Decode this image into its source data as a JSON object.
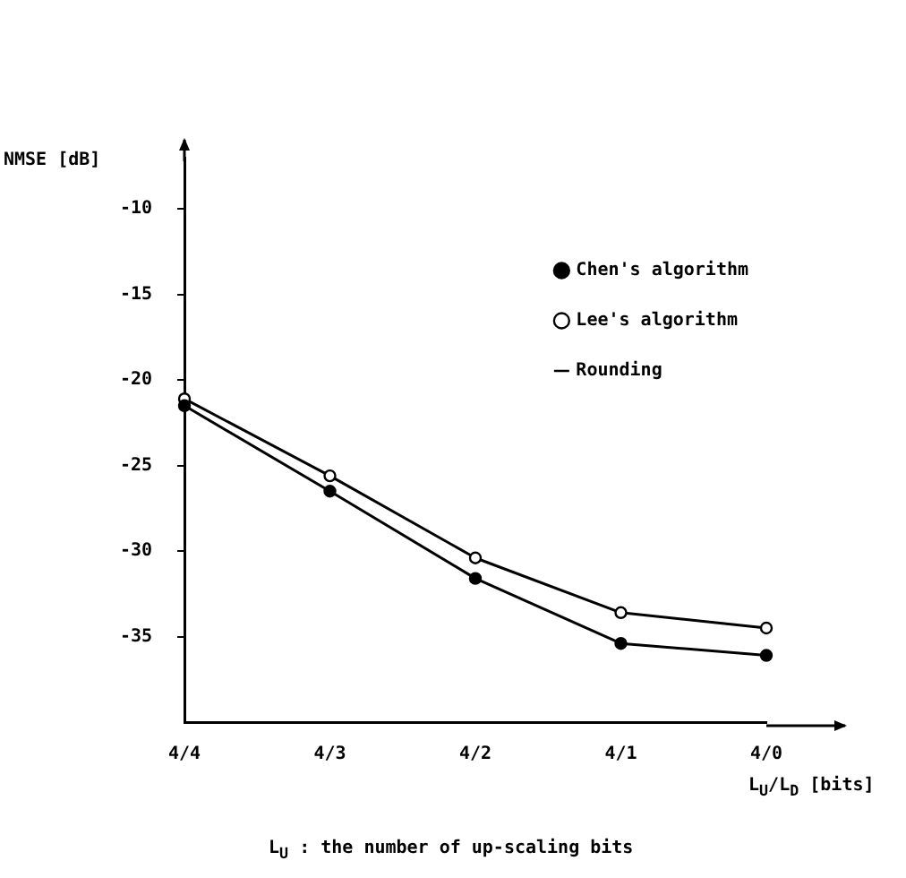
{
  "chart_data": {
    "type": "line",
    "ylabel": "NMSE [dB]",
    "xlabel": "L$_{U}$/L$_{D}$ [bits]",
    "annotations": [
      "L$_{U}$ : the number of up-scaling bits"
    ],
    "categories": [
      "4/4",
      "4/3",
      "4/2",
      "4/1",
      "4/0"
    ],
    "series": [
      {
        "name": "Chen's algorithm",
        "color": "#000000",
        "marker": "circle",
        "values": [
          -21.5,
          -26.5,
          -31.6,
          -35.4,
          -36.1
        ]
      },
      {
        "name": "Lee's algorithm",
        "color": "#ffffff",
        "marker": "circle",
        "values": [
          -21.1,
          -25.6,
          -30.4,
          -33.6,
          -34.5
        ]
      },
      {
        "name": "Rounding",
        "color": "#000000",
        "marker": "none",
        "values": [
          null,
          null,
          null,
          null,
          null
        ]
      }
    ],
    "ylim": [
      -40,
      -7
    ],
    "yticks": [
      -10,
      -15,
      -20,
      -25,
      -30,
      -35
    ],
    "grid": false,
    "legend": "top right",
    "line_style": "solid"
  }
}
